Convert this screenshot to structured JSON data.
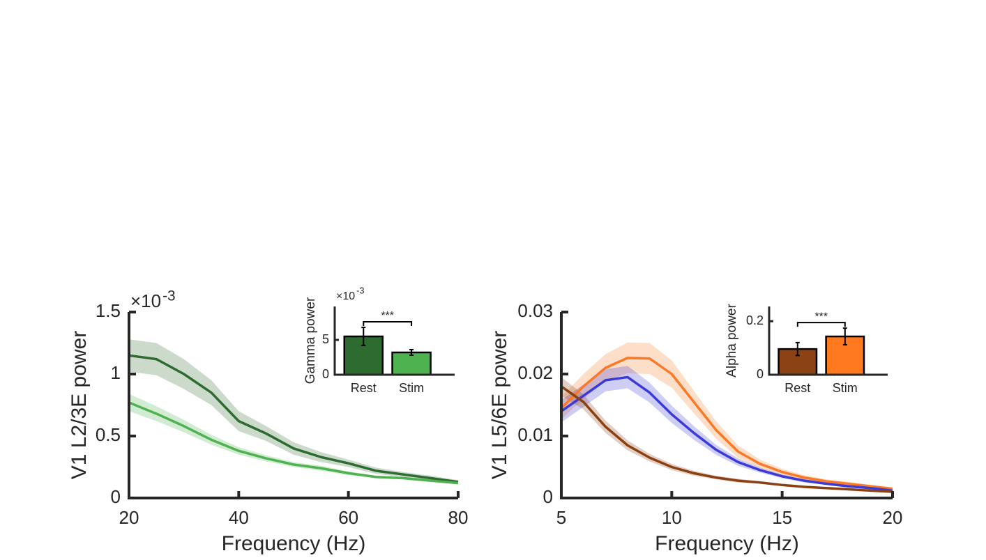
{
  "chart_data": [
    {
      "type": "line",
      "xlabel": "Frequency (Hz)",
      "ylabel": "V1 L2/3E power",
      "y_multiplier": "×10",
      "y_exponent": "-3",
      "xlim": [
        20,
        80
      ],
      "xticks": [
        20,
        40,
        60,
        80
      ],
      "ylim": [
        0,
        1.5
      ],
      "yticks": [
        0,
        0.5,
        1,
        1.5
      ],
      "x": [
        20,
        25,
        30,
        35,
        40,
        45,
        50,
        55,
        60,
        65,
        70,
        75,
        80
      ],
      "series": [
        {
          "color": "#2e6b30",
          "values": [
            1.15,
            1.12,
            1.0,
            0.85,
            0.62,
            0.52,
            0.4,
            0.33,
            0.28,
            0.22,
            0.19,
            0.16,
            0.13
          ],
          "upper": [
            1.28,
            1.25,
            1.12,
            0.95,
            0.7,
            0.58,
            0.45,
            0.37,
            0.31,
            0.245,
            0.21,
            0.18,
            0.145
          ],
          "lower": [
            1.02,
            0.99,
            0.88,
            0.75,
            0.54,
            0.46,
            0.35,
            0.29,
            0.25,
            0.195,
            0.17,
            0.14,
            0.115
          ]
        },
        {
          "color": "#4db24f",
          "values": [
            0.77,
            0.68,
            0.58,
            0.47,
            0.38,
            0.32,
            0.27,
            0.24,
            0.2,
            0.17,
            0.16,
            0.14,
            0.12
          ],
          "upper": [
            0.84,
            0.74,
            0.63,
            0.51,
            0.41,
            0.345,
            0.29,
            0.26,
            0.215,
            0.18,
            0.17,
            0.15,
            0.13
          ],
          "lower": [
            0.7,
            0.62,
            0.53,
            0.43,
            0.35,
            0.295,
            0.25,
            0.22,
            0.185,
            0.16,
            0.15,
            0.13,
            0.11
          ]
        }
      ]
    },
    {
      "type": "bar",
      "ylabel": "Gamma power",
      "y_multiplier": "×10",
      "y_exponent": "-3",
      "ylim": [
        0,
        9.8
      ],
      "yticks": [
        0,
        5
      ],
      "categories": [
        "Rest",
        "Stim"
      ],
      "values": [
        5.5,
        3.2
      ],
      "errors": [
        1.3,
        0.4
      ],
      "colors": [
        "#2e6b30",
        "#4db24f"
      ],
      "annotation": "***"
    },
    {
      "type": "line",
      "xlabel": "Frequency (Hz)",
      "ylabel": "V1 L5/6E power",
      "xlim": [
        5,
        20
      ],
      "xticks": [
        5,
        10,
        15,
        20
      ],
      "ylim": [
        0,
        0.03
      ],
      "yticks": [
        0,
        0.01,
        0.02,
        0.03
      ],
      "x": [
        5,
        6,
        7,
        8,
        9,
        10,
        11,
        12,
        13,
        14,
        15,
        16,
        17,
        18,
        19,
        20
      ],
      "series": [
        {
          "color": "#f97a26",
          "values": [
            0.0145,
            0.018,
            0.021,
            0.0226,
            0.0225,
            0.02,
            0.0155,
            0.011,
            0.0075,
            0.0055,
            0.0042,
            0.0033,
            0.0027,
            0.0023,
            0.0019,
            0.0015
          ],
          "upper": [
            0.0163,
            0.02,
            0.0232,
            0.0251,
            0.025,
            0.0222,
            0.0173,
            0.0124,
            0.0085,
            0.0062,
            0.0047,
            0.0037,
            0.003,
            0.0026,
            0.0021,
            0.0017
          ],
          "lower": [
            0.0127,
            0.016,
            0.0188,
            0.0201,
            0.02,
            0.0178,
            0.0137,
            0.0096,
            0.0065,
            0.0048,
            0.0037,
            0.0029,
            0.0024,
            0.002,
            0.0017,
            0.0013
          ]
        },
        {
          "color": "#3b3ad9",
          "values": [
            0.014,
            0.0165,
            0.019,
            0.0195,
            0.017,
            0.0135,
            0.0105,
            0.0078,
            0.0058,
            0.0045,
            0.0035,
            0.0028,
            0.0023,
            0.0019,
            0.0016,
            0.0012
          ],
          "upper": [
            0.0158,
            0.0183,
            0.0208,
            0.0213,
            0.0186,
            0.0149,
            0.0116,
            0.0086,
            0.0064,
            0.0049,
            0.0038,
            0.0031,
            0.0025,
            0.0021,
            0.0018,
            0.0013
          ],
          "lower": [
            0.0122,
            0.0147,
            0.0172,
            0.0177,
            0.0154,
            0.0121,
            0.0094,
            0.007,
            0.0052,
            0.0041,
            0.0032,
            0.0025,
            0.0021,
            0.0017,
            0.0014,
            0.0011
          ]
        },
        {
          "color": "#8b4012",
          "values": [
            0.018,
            0.0155,
            0.0115,
            0.0085,
            0.0065,
            0.005,
            0.004,
            0.0033,
            0.0028,
            0.0025,
            0.0021,
            0.0018,
            0.0016,
            0.0014,
            0.0012,
            0.001
          ],
          "upper": [
            0.0195,
            0.0167,
            0.0125,
            0.0093,
            0.0071,
            0.0055,
            0.0044,
            0.0036,
            0.0031,
            0.0027,
            0.0023,
            0.002,
            0.0018,
            0.0015,
            0.0013,
            0.0011
          ],
          "lower": [
            0.0165,
            0.0143,
            0.0105,
            0.0077,
            0.0059,
            0.0045,
            0.0036,
            0.003,
            0.0025,
            0.0023,
            0.0019,
            0.0016,
            0.0014,
            0.0013,
            0.0011,
            0.0009
          ]
        }
      ]
    },
    {
      "type": "bar",
      "ylabel": "Alpha power",
      "ylim": [
        0,
        0.255
      ],
      "yticks": [
        0,
        0.2
      ],
      "categories": [
        "Rest",
        "Stim"
      ],
      "values": [
        0.096,
        0.143
      ],
      "errors": [
        0.024,
        0.031
      ],
      "colors": [
        "#8b4214",
        "#ff7a1f"
      ],
      "annotation": "***"
    }
  ]
}
